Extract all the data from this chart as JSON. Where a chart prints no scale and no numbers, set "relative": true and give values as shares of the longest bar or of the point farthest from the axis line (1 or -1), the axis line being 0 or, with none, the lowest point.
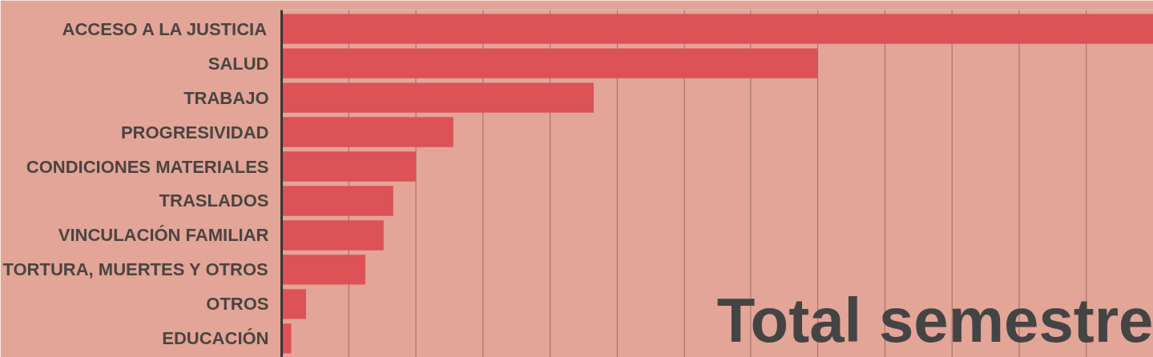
{
  "chart_data": {
    "type": "bar",
    "orientation": "horizontal",
    "relative": true,
    "categories": [
      "ACCESO A LA JUSTICIA",
      "SALUD",
      "TRABAJO",
      "PROGRESIVIDAD",
      "CONDICIONES MATERIALES",
      "TRASLADOS",
      "VINCULACIÓN FAMILIAR",
      "TORTURA, MUERTES Y OTROS",
      "OTROS",
      "EDUCACIÓN"
    ],
    "values": [
      1,
      0.615,
      0.358,
      0.197,
      0.154,
      0.128,
      0.117,
      0.096,
      0.028,
      0.011
    ],
    "color": "#dc5257",
    "ref_lines": [
      {
        "axis": "x",
        "value": 0.077,
        "color": "#9a6e66"
      },
      {
        "axis": "x",
        "value": 0.154,
        "color": "#9a6e66"
      },
      {
        "axis": "x",
        "value": 0.231,
        "color": "#9a6e66"
      },
      {
        "axis": "x",
        "value": 0.308,
        "color": "#9a6e66"
      },
      {
        "axis": "x",
        "value": 0.385,
        "color": "#9a6e66"
      },
      {
        "axis": "x",
        "value": 0.462,
        "color": "#9a6e66"
      },
      {
        "axis": "x",
        "value": 0.538,
        "color": "#9a6e66"
      },
      {
        "axis": "x",
        "value": 0.615,
        "color": "#9a6e66"
      },
      {
        "axis": "x",
        "value": 0.692,
        "color": "#9a6e66"
      },
      {
        "axis": "x",
        "value": 0.769,
        "color": "#9a6e66"
      },
      {
        "axis": "x",
        "value": 0.846,
        "color": "#9a6e66"
      },
      {
        "axis": "x",
        "value": 0.923,
        "color": "#9a6e66"
      }
    ],
    "annotations": [
      "Total semestre"
    ]
  }
}
